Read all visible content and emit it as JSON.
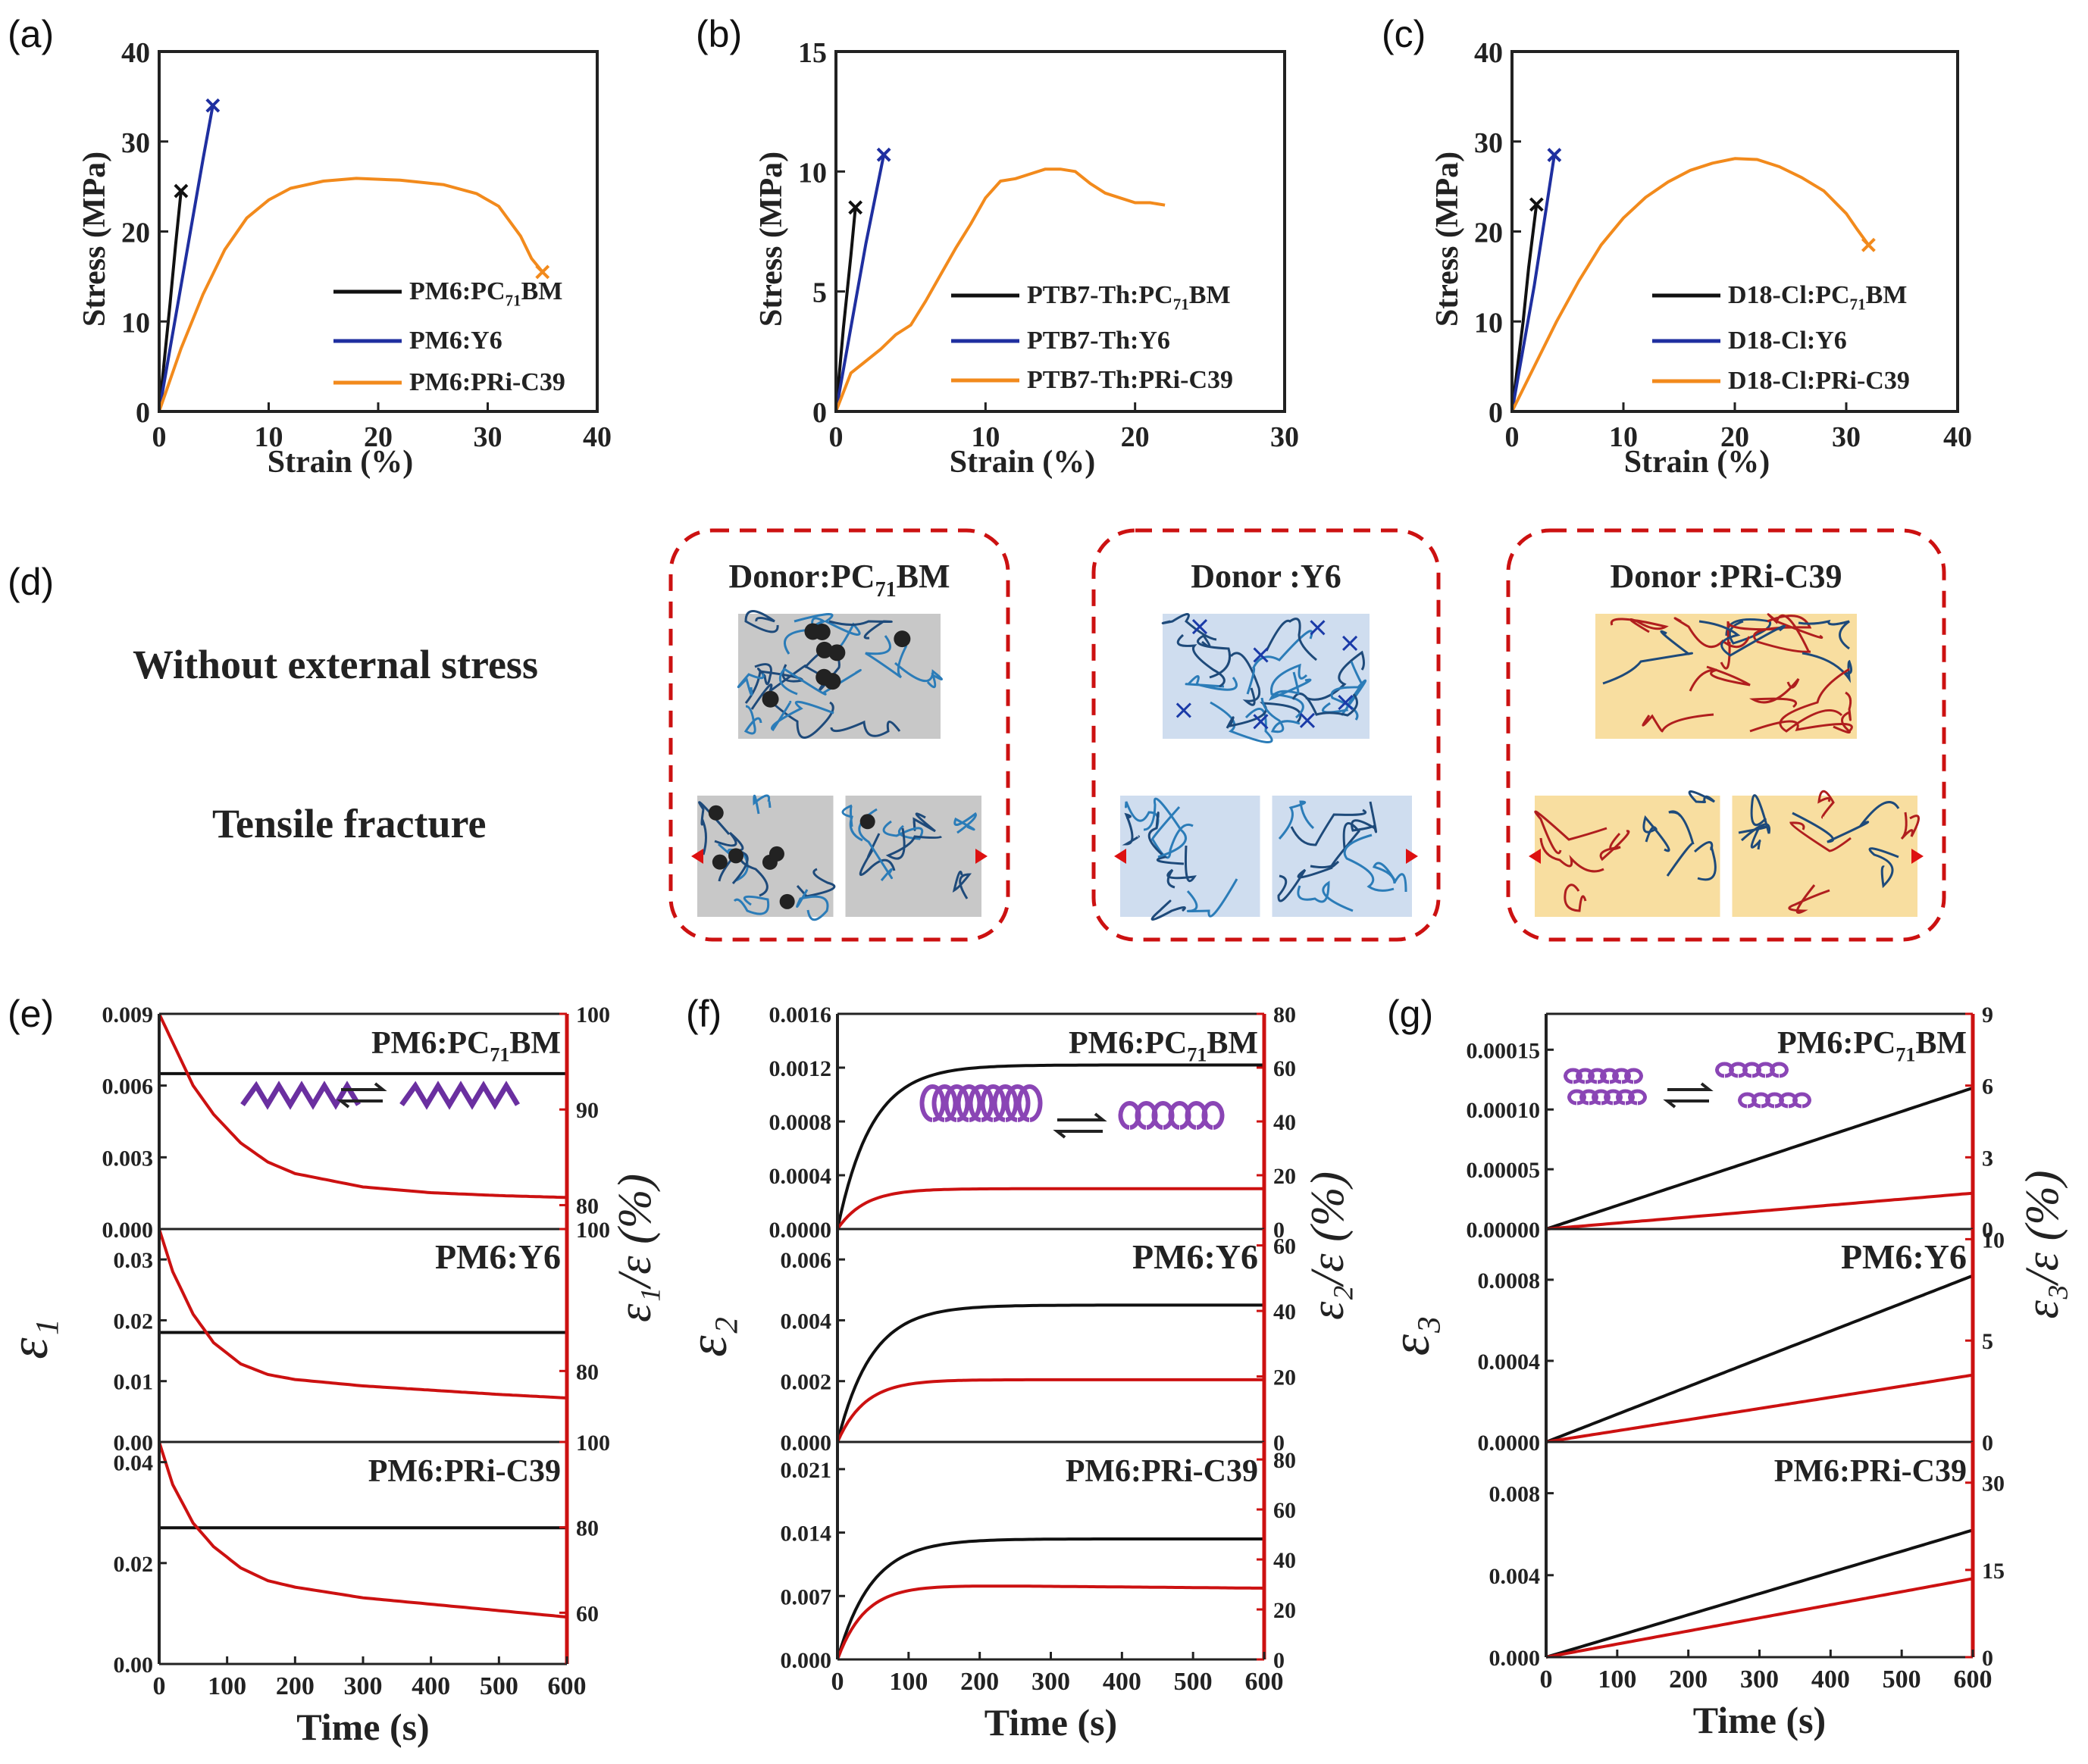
{
  "chart_data": [
    {
      "panel": "(a)",
      "type": "line",
      "xlabel": "Strain (%)",
      "ylabel": "Stress (MPa)",
      "xlim": [
        0,
        40
      ],
      "ylim": [
        0,
        40
      ],
      "xticks": [
        "0",
        "10",
        "20",
        "30",
        "40"
      ],
      "yticks": [
        "0",
        "10",
        "20",
        "30",
        "40"
      ],
      "series": [
        {
          "name": "PM6:PC71BM",
          "color": "#111111",
          "x": [
            0,
            0.5,
            1,
            1.5,
            2
          ],
          "y": [
            0,
            6,
            12,
            18.5,
            24.5
          ],
          "end_marker": "x"
        },
        {
          "name": "PM6:Y6",
          "color": "#1f2fa0",
          "x": [
            0,
            1,
            2,
            3,
            4,
            4.9
          ],
          "y": [
            0,
            7,
            14,
            21,
            28,
            34
          ],
          "end_marker": "x"
        },
        {
          "name": "PM6:PRi-C39",
          "color": "#f28a1c",
          "x": [
            0,
            2,
            4,
            6,
            8,
            10,
            12,
            15,
            18,
            22,
            26,
            29,
            31,
            33,
            34,
            35
          ],
          "y": [
            0,
            7,
            13,
            18,
            21.5,
            23.5,
            24.8,
            25.6,
            25.9,
            25.7,
            25.2,
            24.2,
            22.8,
            19.5,
            17,
            15.5
          ],
          "end_marker": "x"
        }
      ]
    },
    {
      "panel": "(b)",
      "type": "line",
      "xlabel": "Strain (%)",
      "ylabel": "Stress (MPa)",
      "xlim": [
        0,
        30
      ],
      "ylim": [
        0,
        15
      ],
      "xticks": [
        "0",
        "10",
        "20",
        "30"
      ],
      "yticks": [
        "0",
        "5",
        "10",
        "15"
      ],
      "series": [
        {
          "name": "PTB7-Th:PC71BM",
          "color": "#111111",
          "x": [
            0,
            0.5,
            1,
            1.3
          ],
          "y": [
            0,
            3.5,
            6.5,
            8.5
          ],
          "end_marker": "x"
        },
        {
          "name": "PTB7-Th:Y6",
          "color": "#1f2fa0",
          "x": [
            0,
            1,
            2,
            3.2
          ],
          "y": [
            0,
            3.5,
            7,
            10.7
          ],
          "end_marker": "x"
        },
        {
          "name": "PTB7-Th:PRi-C39",
          "color": "#f28a1c",
          "x": [
            0,
            1,
            2,
            3,
            4,
            5,
            6,
            7,
            8,
            9,
            10,
            11,
            12,
            13,
            14,
            15,
            16,
            17,
            18,
            19,
            20,
            21,
            22
          ],
          "y": [
            0,
            1.6,
            2.1,
            2.6,
            3.2,
            3.6,
            4.6,
            5.7,
            6.8,
            7.8,
            8.9,
            9.6,
            9.7,
            9.9,
            10.1,
            10.1,
            10.0,
            9.5,
            9.1,
            8.9,
            8.7,
            8.7,
            8.6
          ]
        }
      ]
    },
    {
      "panel": "(c)",
      "type": "line",
      "xlabel": "Strain (%)",
      "ylabel": "Stress (MPa)",
      "xlim": [
        0,
        40
      ],
      "ylim": [
        0,
        40
      ],
      "xticks": [
        "0",
        "10",
        "20",
        "30",
        "40"
      ],
      "yticks": [
        "0",
        "10",
        "20",
        "30",
        "40"
      ],
      "series": [
        {
          "name": "D18-Cl:PC71BM",
          "color": "#111111",
          "x": [
            0,
            0.5,
            1,
            1.5,
            2.2
          ],
          "y": [
            0,
            5,
            10,
            16,
            23
          ],
          "end_marker": "x"
        },
        {
          "name": "D18-Cl:Y6",
          "color": "#1f2fa0",
          "x": [
            0,
            1,
            2,
            3,
            3.8
          ],
          "y": [
            0,
            7,
            14,
            22,
            28.5
          ],
          "end_marker": "x"
        },
        {
          "name": "D18-Cl:PRi-C39",
          "color": "#f28a1c",
          "x": [
            0,
            2,
            4,
            6,
            8,
            10,
            12,
            14,
            16,
            18,
            20,
            22,
            24,
            26,
            28,
            30,
            31,
            32
          ],
          "y": [
            0,
            5,
            10,
            14.5,
            18.5,
            21.5,
            23.8,
            25.5,
            26.8,
            27.6,
            28.1,
            28,
            27.2,
            26,
            24.5,
            22,
            20.2,
            18.5
          ],
          "end_marker": "x"
        }
      ]
    },
    {
      "panel": "(e)",
      "type": "line",
      "xlabel": "Time (s)",
      "xlim": [
        0,
        600
      ],
      "xticks": [
        "0",
        "100",
        "200",
        "300",
        "400",
        "500",
        "600"
      ],
      "ylabel_left": "ε₁",
      "ylabel_right": "ε₁/ε (%)",
      "subplots": [
        {
          "label": "PM6:PC71BM",
          "left_ticks": [
            "0.000",
            "0.003",
            "0.006",
            "0.009"
          ],
          "left_lim": [
            0,
            0.009
          ],
          "right_ticks": [
            "80",
            "90",
            "100"
          ],
          "right_lim": [
            77.5,
            100
          ],
          "black_value": 0.0065,
          "red_points": [
            [
              0,
              100
            ],
            [
              20,
              97
            ],
            [
              50,
              92.5
            ],
            [
              80,
              89.5
            ],
            [
              120,
              86.5
            ],
            [
              160,
              84.5
            ],
            [
              200,
              83.3
            ],
            [
              300,
              81.9
            ],
            [
              400,
              81.3
            ],
            [
              500,
              81.0
            ],
            [
              600,
              80.8
            ]
          ]
        },
        {
          "label": "PM6:Y6",
          "left_ticks": [
            "0.00",
            "0.01",
            "0.02",
            "0.03"
          ],
          "left_lim": [
            0,
            0.035
          ],
          "right_ticks": [
            "80",
            "100"
          ],
          "right_lim": [
            70,
            100
          ],
          "black_value": 0.018,
          "red_points": [
            [
              0,
              100
            ],
            [
              20,
              94
            ],
            [
              50,
              88
            ],
            [
              80,
              84
            ],
            [
              120,
              81
            ],
            [
              160,
              79.5
            ],
            [
              200,
              78.8
            ],
            [
              300,
              77.9
            ],
            [
              400,
              77.3
            ],
            [
              500,
              76.7
            ],
            [
              600,
              76.2
            ]
          ]
        },
        {
          "label": "PM6:PRi-C39",
          "left_ticks": [
            "0.00",
            "0.02",
            "0.04"
          ],
          "left_lim": [
            0,
            0.044
          ],
          "right_ticks": [
            "60",
            "80",
            "100"
          ],
          "right_lim": [
            48,
            100
          ],
          "black_value": 0.027,
          "red_points": [
            [
              0,
              100
            ],
            [
              20,
              90
            ],
            [
              50,
              81
            ],
            [
              80,
              75.5
            ],
            [
              120,
              70.5
            ],
            [
              160,
              67.5
            ],
            [
              200,
              66
            ],
            [
              300,
              63.5
            ],
            [
              400,
              62
            ],
            [
              500,
              60.5
            ],
            [
              600,
              59
            ]
          ]
        }
      ],
      "inset": "zigzag"
    },
    {
      "panel": "(f)",
      "type": "line",
      "xlabel": "Time (s)",
      "xlim": [
        0,
        600
      ],
      "xticks": [
        "0",
        "100",
        "200",
        "300",
        "400",
        "500",
        "600"
      ],
      "ylabel_left": "ε₂",
      "ylabel_right": "ε₂/ε (%)",
      "subplots": [
        {
          "label": "PM6:PC71BM",
          "left_ticks": [
            "0.0000",
            "0.0004",
            "0.0008",
            "0.0012",
            "0.0016"
          ],
          "left_lim": [
            0,
            0.0016
          ],
          "right_ticks": [
            "0",
            "20",
            "40",
            "60",
            "80"
          ],
          "right_lim": [
            0,
            80
          ],
          "black_plateau": 0.00122,
          "red_plateau": 15,
          "tau": 48
        },
        {
          "label": "PM6:Y6",
          "left_ticks": [
            "0.000",
            "0.002",
            "0.004",
            "0.006"
          ],
          "left_lim": [
            0,
            0.007
          ],
          "right_ticks": [
            "0",
            "20",
            "40",
            "60"
          ],
          "right_lim": [
            0,
            65
          ],
          "black_plateau": 0.0045,
          "red_plateau": 19,
          "tau": 48
        },
        {
          "label": "PM6:PRi-C39",
          "left_ticks": [
            "0.000",
            "0.007",
            "0.014",
            "0.021"
          ],
          "left_lim": [
            0,
            0.024
          ],
          "right_ticks": [
            "0",
            "20",
            "40",
            "60",
            "80"
          ],
          "right_lim": [
            0,
            87
          ],
          "black_plateau": 0.0133,
          "red_plateau": 30,
          "tau": 48,
          "red_drift": -1.5
        }
      ],
      "inset": "helix"
    },
    {
      "panel": "(g)",
      "type": "line",
      "xlabel": "Time (s)",
      "xlim": [
        0,
        600
      ],
      "xticks": [
        "0",
        "100",
        "200",
        "300",
        "400",
        "500",
        "600"
      ],
      "ylabel_left": "ε₃",
      "ylabel_right": "ε₃/ε (%)",
      "subplots": [
        {
          "label": "PM6:PC71BM",
          "left_ticks": [
            "0.00000",
            "0.00005",
            "0.00010",
            "0.00015"
          ],
          "left_lim": [
            0,
            0.00018
          ],
          "right_ticks": [
            "0",
            "3",
            "6",
            "9"
          ],
          "right_lim": [
            0,
            9
          ],
          "black_end": 0.000118,
          "red_end": 1.5
        },
        {
          "label": "PM6:Y6",
          "left_ticks": [
            "0.0000",
            "0.0004",
            "0.0008"
          ],
          "left_lim": [
            0,
            0.00105
          ],
          "right_ticks": [
            "0",
            "5",
            "10"
          ],
          "right_lim": [
            0,
            10.5
          ],
          "black_end": 0.00082,
          "red_end": 3.3
        },
        {
          "label": "PM6:PRi-C39",
          "left_ticks": [
            "0.000",
            "0.004",
            "0.008"
          ],
          "left_lim": [
            0,
            0.0105
          ],
          "right_ticks": [
            "0",
            "15",
            "30"
          ],
          "right_lim": [
            0,
            37
          ],
          "black_end": 0.0062,
          "red_end": 13.5
        }
      ],
      "inset": "coil"
    }
  ],
  "panel_d": {
    "label": "(d)",
    "row_labels": [
      "Without external stress",
      "Tensile fracture"
    ],
    "boxes": [
      {
        "title_main": "Donor:PC",
        "title_sub": "71",
        "title_end": "BM",
        "fill": "#c8c8c8"
      },
      {
        "title_main": "Donor :Y6",
        "title_sub": "",
        "title_end": "",
        "fill": "#cfddef"
      },
      {
        "title_main": "Donor :PRi-C39",
        "title_sub": "",
        "title_end": "",
        "fill": "#f8dea0"
      }
    ]
  }
}
